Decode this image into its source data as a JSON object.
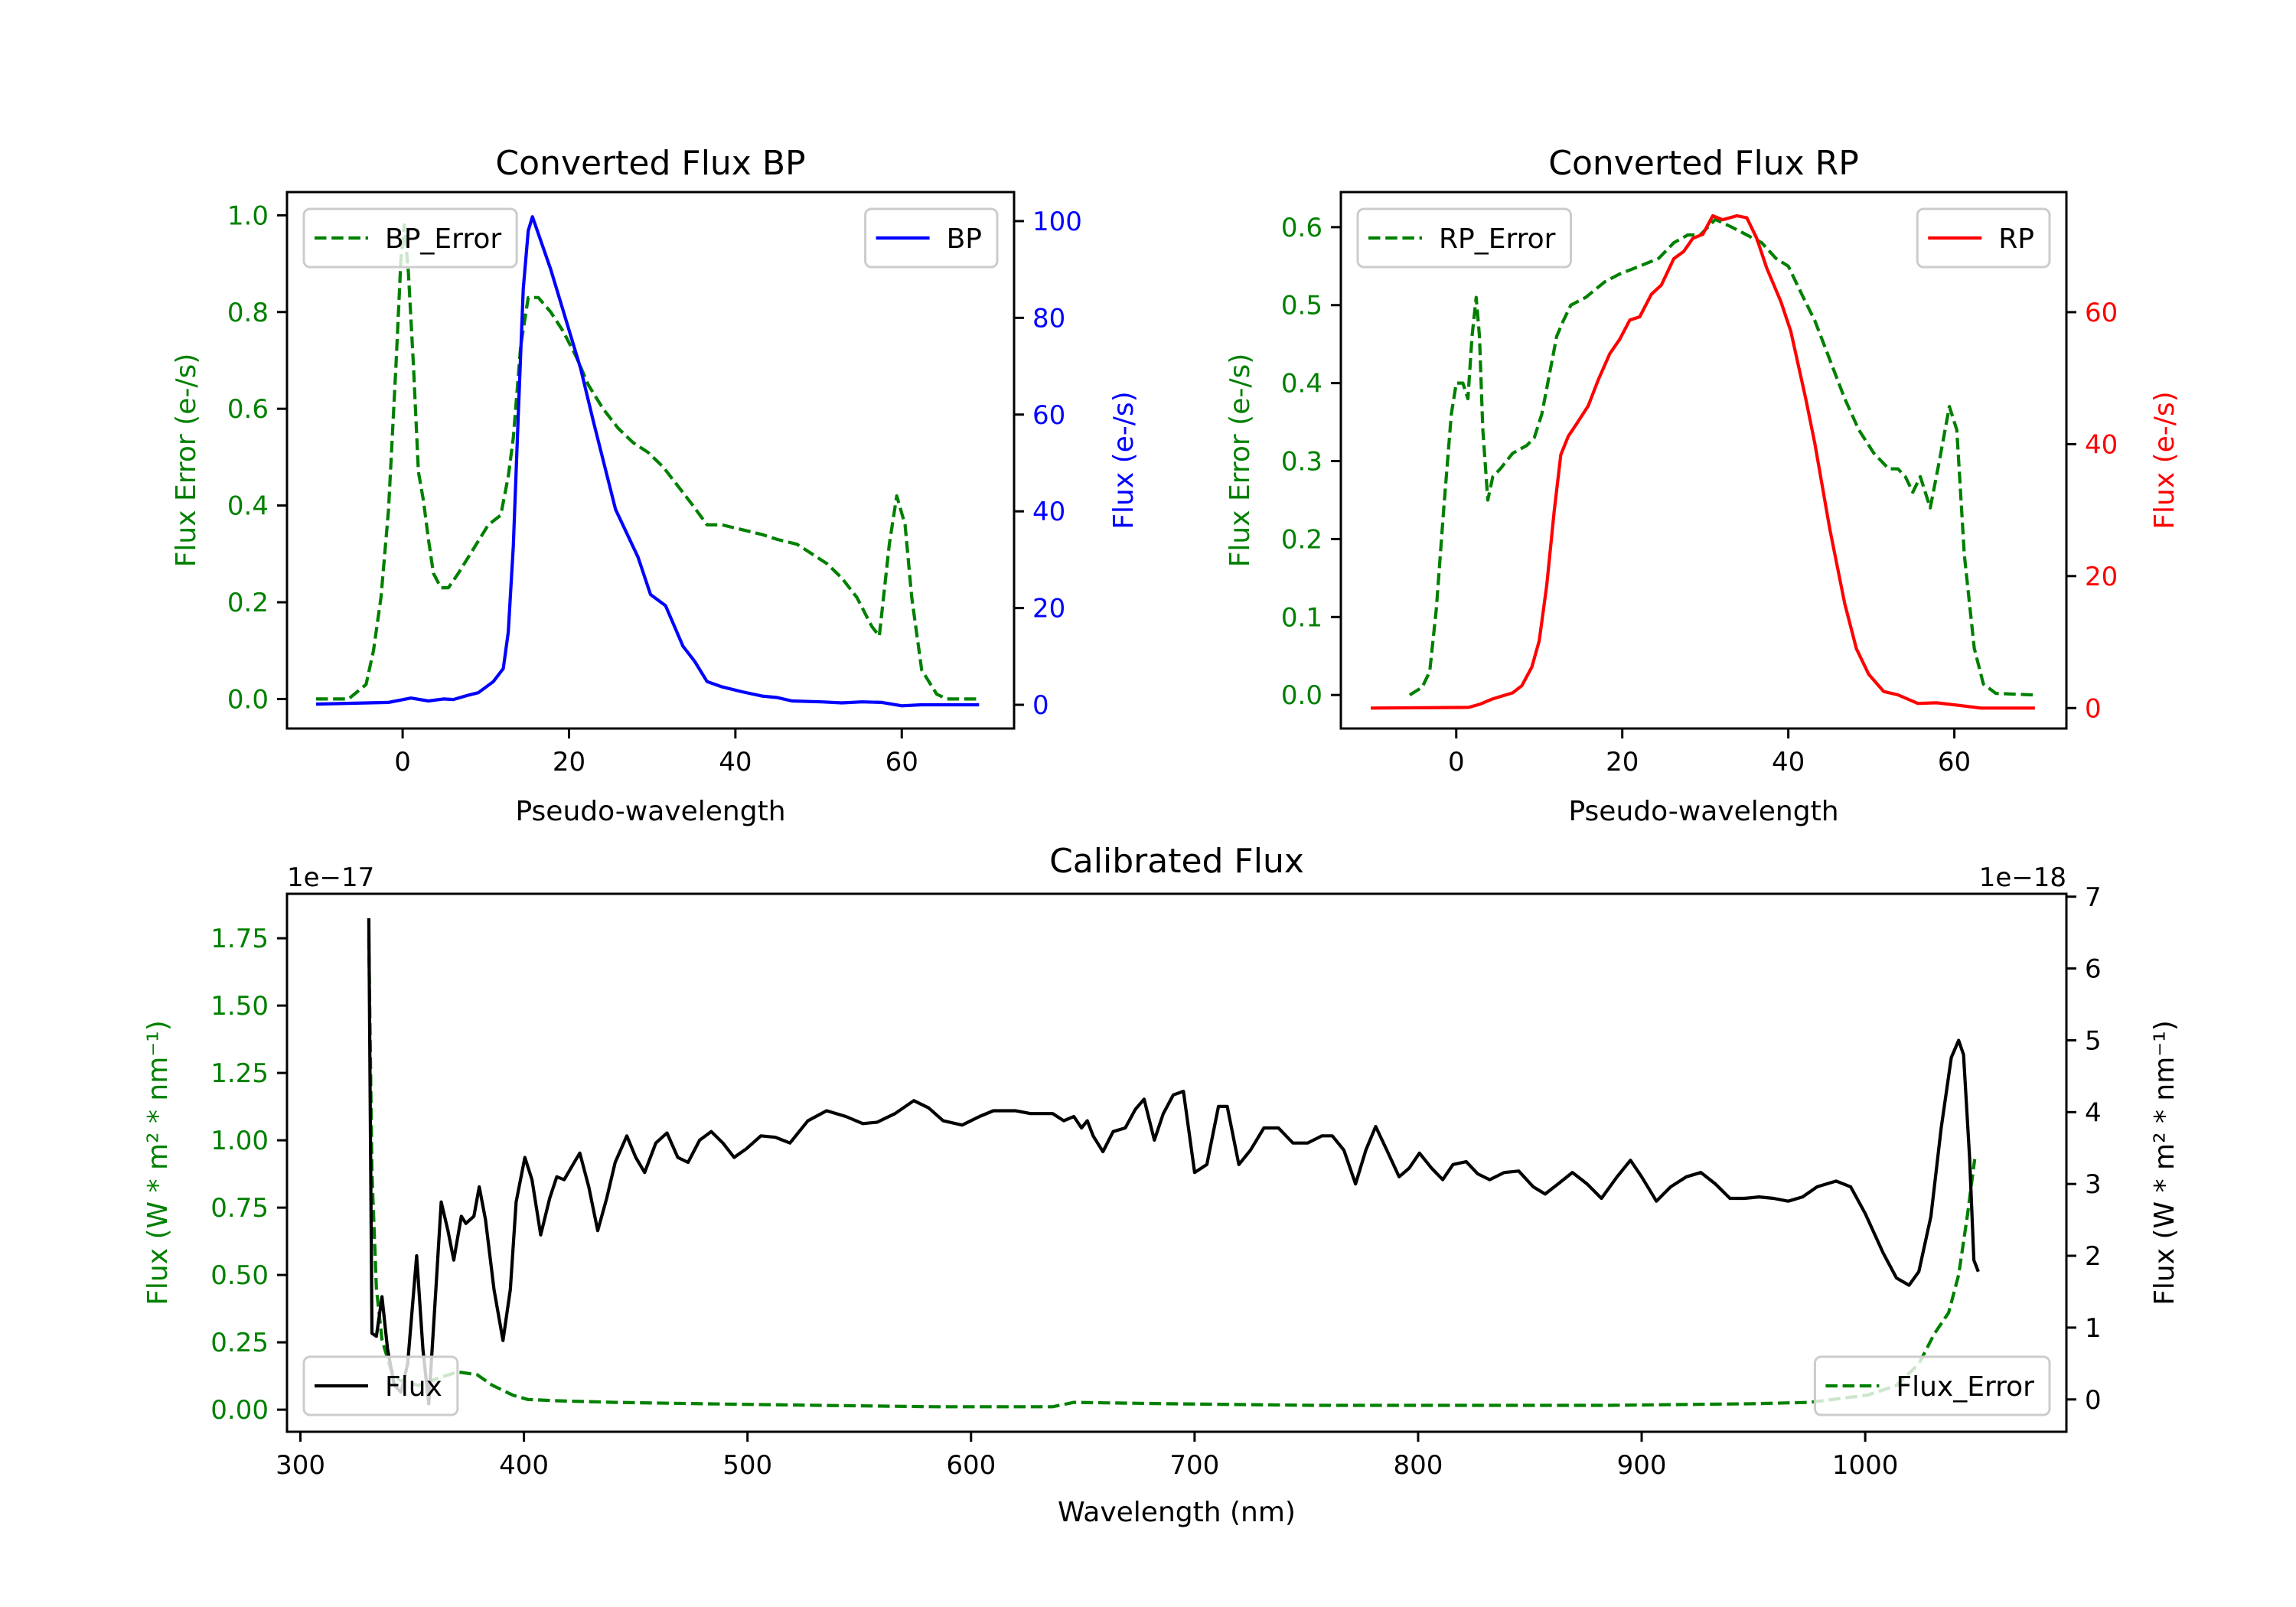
{
  "colors": {
    "error": "#008000",
    "bp": "#0000ff",
    "rp": "#ff0000",
    "flux": "#000000",
    "axis": "#000000",
    "legend_border": "#cccccc"
  },
  "chart_data": [
    {
      "id": "bp",
      "type": "line",
      "title": "Converted Flux BP",
      "xlabel": "Pseudo-wavelength",
      "ylabel_left": "Flux Error (e-/s)",
      "ylabel_right": "Flux (e-/s)",
      "xlim": [
        -13.9,
        73.5
      ],
      "ylim_left": [
        -0.061,
        1.048
      ],
      "ylim_right": [
        -4.9,
        106
      ],
      "xticks": [
        0,
        20,
        40,
        60
      ],
      "xtick_labels": [
        "0",
        "20",
        "40",
        "60"
      ],
      "yticks_left": [
        0.0,
        0.2,
        0.4,
        0.6,
        0.8,
        1.0
      ],
      "ytick_labels_left": [
        "0.0",
        "0.2",
        "0.4",
        "0.6",
        "0.8",
        "1.0"
      ],
      "yticks_right": [
        0,
        20,
        40,
        60,
        80,
        100
      ],
      "ytick_labels_right": [
        "0",
        "20",
        "40",
        "60",
        "80",
        "100"
      ],
      "grid": false,
      "series": [
        {
          "name": "BP_Error",
          "axis": "left",
          "style": "dashed",
          "color_key": "error",
          "legend": "upper-left",
          "x": [
            -10.4,
            -6.5,
            -4.4,
            -3.5,
            -2.6,
            -1.7,
            -0.8,
            -0.2,
            0.2,
            0.7,
            1.3,
            1.9,
            2.5,
            3.1,
            3.7,
            4.6,
            5.5,
            6.7,
            8.5,
            10.3,
            11.8,
            12.7,
            13.3,
            14.2,
            15.1,
            16.3,
            17.8,
            19.3,
            20.8,
            22.3,
            24.1,
            25.9,
            27.7,
            29.5,
            31.3,
            33.1,
            34.9,
            36.6,
            38.4,
            40.8,
            43.2,
            45,
            47.4,
            49.2,
            51,
            52.8,
            54.6,
            56.4,
            57.3,
            58.5,
            59.4,
            60.4,
            61.2,
            62.4,
            64.2,
            65.4,
            69.3
          ],
          "y": [
            0,
            0,
            0.03,
            0.1,
            0.21,
            0.39,
            0.69,
            0.91,
            0.98,
            0.88,
            0.69,
            0.47,
            0.41,
            0.33,
            0.26,
            0.23,
            0.23,
            0.26,
            0.31,
            0.36,
            0.38,
            0.46,
            0.54,
            0.73,
            0.83,
            0.83,
            0.8,
            0.76,
            0.71,
            0.65,
            0.6,
            0.56,
            0.53,
            0.51,
            0.48,
            0.44,
            0.4,
            0.36,
            0.36,
            0.35,
            0.34,
            0.33,
            0.32,
            0.3,
            0.28,
            0.25,
            0.21,
            0.15,
            0.13,
            0.32,
            0.42,
            0.36,
            0.21,
            0.06,
            0.01,
            0,
            0
          ]
        },
        {
          "name": "BP",
          "axis": "right",
          "style": "solid",
          "color_key": "bp",
          "legend": "upper-right",
          "x": [
            -10.4,
            -1.7,
            1.0,
            3.1,
            4.9,
            6.1,
            7.9,
            9.1,
            10.9,
            12.1,
            12.7,
            13.3,
            13.9,
            14.5,
            15.1,
            15.6,
            17.8,
            21.4,
            22.9,
            25.6,
            28.3,
            29.8,
            31.6,
            33.7,
            35.1,
            36.6,
            38.4,
            40.8,
            43.2,
            45,
            46.8,
            50.4,
            52.8,
            55.2,
            57.6,
            60,
            62.4,
            69.3
          ],
          "y": [
            0.15,
            0.5,
            1.4,
            0.8,
            1.2,
            1.1,
            2.0,
            2.5,
            4.8,
            7.5,
            15,
            32.8,
            60,
            86,
            98,
            100.9,
            90,
            69.5,
            58.8,
            40.4,
            30.5,
            22.8,
            20.5,
            12.1,
            9.0,
            4.8,
            3.7,
            2.7,
            1.8,
            1.5,
            0.8,
            0.6,
            0.4,
            0.6,
            0.5,
            -0.2,
            0,
            0
          ]
        }
      ]
    },
    {
      "id": "rp",
      "type": "line",
      "title": "Converted Flux RP",
      "xlabel": "Pseudo-wavelength",
      "ylabel_left": "Flux Error (e-/s)",
      "ylabel_right": "Flux (e-/s)",
      "xlim": [
        -13.9,
        73.5
      ],
      "ylim_left": [
        -0.043,
        0.645
      ],
      "ylim_right": [
        -3.1,
        78.2
      ],
      "xticks": [
        0,
        20,
        40,
        60
      ],
      "xtick_labels": [
        "0",
        "20",
        "40",
        "60"
      ],
      "yticks_left": [
        0.0,
        0.1,
        0.2,
        0.3,
        0.4,
        0.5,
        0.6
      ],
      "ytick_labels_left": [
        "0.0",
        "0.1",
        "0.2",
        "0.3",
        "0.4",
        "0.5",
        "0.6"
      ],
      "yticks_right": [
        0,
        20,
        40,
        60
      ],
      "ytick_labels_right": [
        "0",
        "20",
        "40",
        "60"
      ],
      "grid": false,
      "series": [
        {
          "name": "RP_Error",
          "axis": "left",
          "style": "dashed",
          "color_key": "error",
          "legend": "upper-left",
          "x": [
            -5.6,
            -4.1,
            -3.2,
            -2.4,
            -1.5,
            -0.6,
            0,
            0.8,
            1.4,
            1.9,
            2.4,
            2.8,
            3.2,
            3.8,
            4.4,
            5.3,
            6.8,
            8.5,
            9.4,
            10.3,
            11.2,
            12.1,
            12.9,
            13.8,
            15.6,
            17.9,
            19.7,
            22.1,
            24.4,
            26.2,
            27.9,
            29.4,
            31.2,
            33.2,
            35,
            36.8,
            38.5,
            40,
            41.8,
            43.2,
            45,
            46.8,
            48.5,
            50.3,
            52.1,
            53.2,
            54.1,
            55,
            55.9,
            57.1,
            58.2,
            59.4,
            60.3,
            61.2,
            62.4,
            63.5,
            65,
            69.7
          ],
          "y": [
            0,
            0.01,
            0.03,
            0.11,
            0.24,
            0.36,
            0.4,
            0.4,
            0.38,
            0.46,
            0.51,
            0.46,
            0.34,
            0.25,
            0.28,
            0.29,
            0.31,
            0.32,
            0.33,
            0.36,
            0.41,
            0.46,
            0.48,
            0.5,
            0.51,
            0.53,
            0.54,
            0.55,
            0.56,
            0.58,
            0.59,
            0.59,
            0.61,
            0.6,
            0.59,
            0.58,
            0.56,
            0.55,
            0.51,
            0.48,
            0.43,
            0.38,
            0.34,
            0.31,
            0.29,
            0.29,
            0.28,
            0.26,
            0.28,
            0.24,
            0.3,
            0.37,
            0.34,
            0.18,
            0.06,
            0.014,
            0.002,
            0
          ]
        },
        {
          "name": "RP",
          "axis": "right",
          "style": "solid",
          "color_key": "rp",
          "legend": "upper-right",
          "x": [
            -10.3,
            1.5,
            2.9,
            4.4,
            6.8,
            7.9,
            9.1,
            10,
            10.9,
            11.8,
            12.6,
            13.5,
            14.4,
            15.9,
            17.1,
            18.5,
            19.7,
            20.9,
            22.1,
            23.5,
            24.7,
            26.2,
            27.4,
            28.5,
            29.7,
            30.9,
            32.1,
            33.8,
            35,
            36.2,
            37.4,
            39.1,
            40.3,
            42.1,
            43.2,
            45,
            46.8,
            48.2,
            49.7,
            51.5,
            53.2,
            55.6,
            57.9,
            60.3,
            63.2,
            69.7
          ],
          "y": [
            0,
            0.1,
            0.6,
            1.4,
            2.3,
            3.4,
            6.2,
            10.2,
            18.6,
            29.9,
            38.4,
            41.2,
            42.9,
            45.8,
            49.7,
            53.7,
            55.9,
            58.8,
            59.3,
            62.7,
            64.1,
            68.1,
            69.2,
            71.2,
            71.8,
            74.6,
            74,
            74.6,
            74.3,
            71.2,
            66.7,
            61.6,
            57.1,
            46.9,
            40.1,
            27.1,
            15.8,
            9.0,
            5.1,
            2.5,
            2.0,
            0.7,
            0.8,
            0.45,
            0,
            0
          ]
        }
      ]
    },
    {
      "id": "calibrated",
      "type": "line",
      "title": "Calibrated Flux",
      "xlabel": "Wavelength (nm)",
      "ylabel_left": "Flux (W * m² * nm⁻¹)",
      "ylabel_right": "Flux (W * m² * nm⁻¹)",
      "offset_left": "1e−17",
      "offset_right": "1e−18",
      "left_scale": 1e-17,
      "right_scale": 1e-18,
      "xlim": [
        294,
        1090
      ],
      "ylim_left": [
        -0.082,
        1.915
      ],
      "ylim_right": [
        -0.45,
        7.04
      ],
      "xticks": [
        300,
        400,
        500,
        600,
        700,
        800,
        900,
        1000
      ],
      "xtick_labels": [
        "300",
        "400",
        "500",
        "600",
        "700",
        "800",
        "900",
        "1000"
      ],
      "yticks_left": [
        0.0,
        0.25,
        0.5,
        0.75,
        1.0,
        1.25,
        1.5,
        1.75
      ],
      "ytick_labels_left": [
        "0.00",
        "0.25",
        "0.50",
        "0.75",
        "1.00",
        "1.25",
        "1.50",
        "1.75"
      ],
      "yticks_right": [
        0,
        1,
        2,
        3,
        4,
        5,
        6,
        7
      ],
      "ytick_labels_right": [
        "0",
        "1",
        "2",
        "3",
        "4",
        "5",
        "6",
        "7"
      ],
      "grid": false,
      "series": [
        {
          "name": "Flux_Error",
          "axis": "left",
          "style": "dashed",
          "color_key": "error",
          "legend": "lower-right",
          "x": [
            330.6,
            332,
            334,
            336.5,
            340.4,
            344.3,
            352.8,
            362.6,
            370.4,
            379,
            386,
            395,
            401.7,
            414.7,
            440.8,
            480,
            532,
            584,
            636.5,
            646,
            688.4,
            753.6,
            818.9,
            884,
            949,
            975,
            1001,
            1014,
            1024,
            1030.8,
            1037.3,
            1041.8,
            1045.7,
            1049
          ],
          "y": [
            1.75,
            0.88,
            0.45,
            0.26,
            0.15,
            0.11,
            0.09,
            0.12,
            0.14,
            0.13,
            0.09,
            0.054,
            0.038,
            0.033,
            0.027,
            0.022,
            0.016,
            0.011,
            0.011,
            0.027,
            0.022,
            0.016,
            0.016,
            0.016,
            0.022,
            0.027,
            0.054,
            0.09,
            0.17,
            0.28,
            0.36,
            0.5,
            0.72,
            0.93
          ]
        },
        {
          "name": "Flux",
          "axis": "right",
          "style": "solid",
          "color_key": "flux",
          "legend": "lower-left",
          "x": [
            330.6,
            332,
            334,
            336.5,
            339,
            342,
            345,
            348,
            352,
            354.8,
            357.4,
            360.6,
            363,
            366,
            368.6,
            372,
            374,
            377.6,
            380,
            382.8,
            386.6,
            390.6,
            393.9,
            396.5,
            400.4,
            403.6,
            407.5,
            411.5,
            414.7,
            418,
            422.5,
            425,
            429,
            433,
            437,
            440.8,
            446,
            450,
            454,
            459,
            464,
            468.8,
            473.4,
            478.6,
            483.8,
            489,
            494,
            499.5,
            506,
            512.5,
            519,
            527,
            535.4,
            544,
            551.6,
            558,
            566,
            574.4,
            581,
            587.5,
            596,
            603.8,
            610,
            620,
            626.6,
            636.5,
            641.5,
            646,
            649.4,
            652,
            654.6,
            659,
            663.6,
            669,
            673.5,
            677.4,
            682,
            686,
            690.5,
            695,
            700,
            705.5,
            710.7,
            714.6,
            719.8,
            725,
            731,
            737.5,
            744,
            750.5,
            757,
            761.6,
            766.8,
            772,
            776.6,
            781,
            786,
            791.5,
            796,
            800.6,
            806,
            811,
            815.6,
            821.5,
            826.7,
            832,
            838.5,
            845,
            851.5,
            856.8,
            862.6,
            869,
            875.6,
            882,
            889,
            895,
            900,
            906.6,
            913,
            920,
            926.5,
            933,
            939.5,
            946,
            952.5,
            959,
            965.5,
            972,
            978.5,
            987,
            993.5,
            1000,
            1008,
            1014,
            1019.6,
            1024,
            1029.4,
            1034,
            1038.5,
            1041.8,
            1044,
            1046.7,
            1048.6,
            1050.6
          ],
          "y": [
            6.7,
            0.92,
            0.88,
            1.43,
            0.7,
            0.2,
            0.1,
            0.5,
            2.0,
            0.7,
            -0.06,
            1.53,
            2.75,
            2.35,
            1.94,
            2.55,
            2.45,
            2.55,
            2.96,
            2.5,
            1.53,
            0.82,
            1.53,
            2.75,
            3.37,
            3.06,
            2.29,
            2.8,
            3.1,
            3.06,
            3.3,
            3.43,
            2.96,
            2.35,
            2.8,
            3.3,
            3.67,
            3.37,
            3.16,
            3.57,
            3.71,
            3.37,
            3.3,
            3.61,
            3.73,
            3.57,
            3.37,
            3.49,
            3.67,
            3.65,
            3.57,
            3.88,
            4.02,
            3.94,
            3.84,
            3.86,
            3.98,
            4.16,
            4.06,
            3.88,
            3.82,
            3.94,
            4.02,
            4.02,
            3.98,
            3.98,
            3.88,
            3.94,
            3.78,
            3.88,
            3.67,
            3.45,
            3.73,
            3.78,
            4.04,
            4.18,
            3.61,
            3.98,
            4.24,
            4.29,
            3.16,
            3.27,
            4.08,
            4.08,
            3.27,
            3.47,
            3.78,
            3.78,
            3.57,
            3.57,
            3.67,
            3.67,
            3.47,
            3.0,
            3.47,
            3.8,
            3.47,
            3.1,
            3.22,
            3.43,
            3.22,
            3.06,
            3.27,
            3.31,
            3.14,
            3.06,
            3.16,
            3.18,
            2.96,
            2.86,
            3.0,
            3.16,
            3.0,
            2.8,
            3.1,
            3.33,
            3.1,
            2.76,
            2.96,
            3.1,
            3.16,
            3.0,
            2.8,
            2.8,
            2.82,
            2.8,
            2.76,
            2.82,
            2.96,
            3.04,
            2.96,
            2.59,
            2.04,
            1.69,
            1.59,
            1.78,
            2.55,
            3.78,
            4.76,
            5.0,
            4.8,
            3.37,
            1.94,
            1.78
          ]
        }
      ]
    }
  ]
}
